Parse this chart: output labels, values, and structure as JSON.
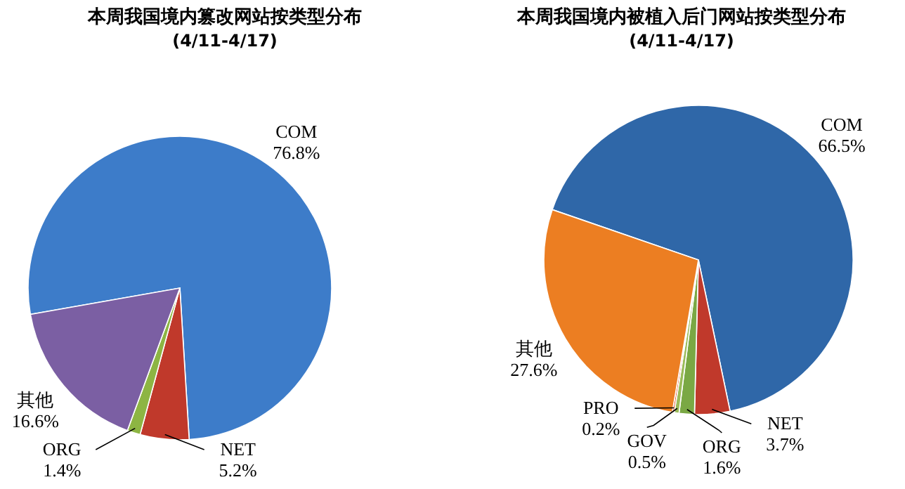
{
  "chart_data": [
    {
      "type": "pie",
      "title": "本周我国境内篡改网站按类型分布",
      "subtitle": "(4/11-4/17)",
      "categories": [
        "COM",
        "NET",
        "ORG",
        "其他"
      ],
      "values": [
        76.8,
        5.2,
        1.4,
        16.6
      ],
      "colors": [
        "#3d7cc9",
        "#c0392b",
        "#8db543",
        "#7b5fa3"
      ],
      "value_labels": [
        "76.8%",
        "5.2%",
        "1.4%",
        "16.6%"
      ]
    },
    {
      "type": "pie",
      "title": "本周我国境内被植入后门网站按类型分布",
      "subtitle": "(4/11-4/17)",
      "categories": [
        "COM",
        "NET",
        "ORG",
        "GOV",
        "PRO",
        "其他"
      ],
      "values": [
        66.5,
        3.7,
        1.6,
        0.5,
        0.2,
        27.6
      ],
      "colors": [
        "#2f67a8",
        "#c0392b",
        "#7aa844",
        "#9bbb59",
        "#e0502a",
        "#ec7e22"
      ],
      "value_labels": [
        "66.5%",
        "3.7%",
        "1.6%",
        "0.5%",
        "0.2%",
        "27.6%"
      ]
    }
  ]
}
